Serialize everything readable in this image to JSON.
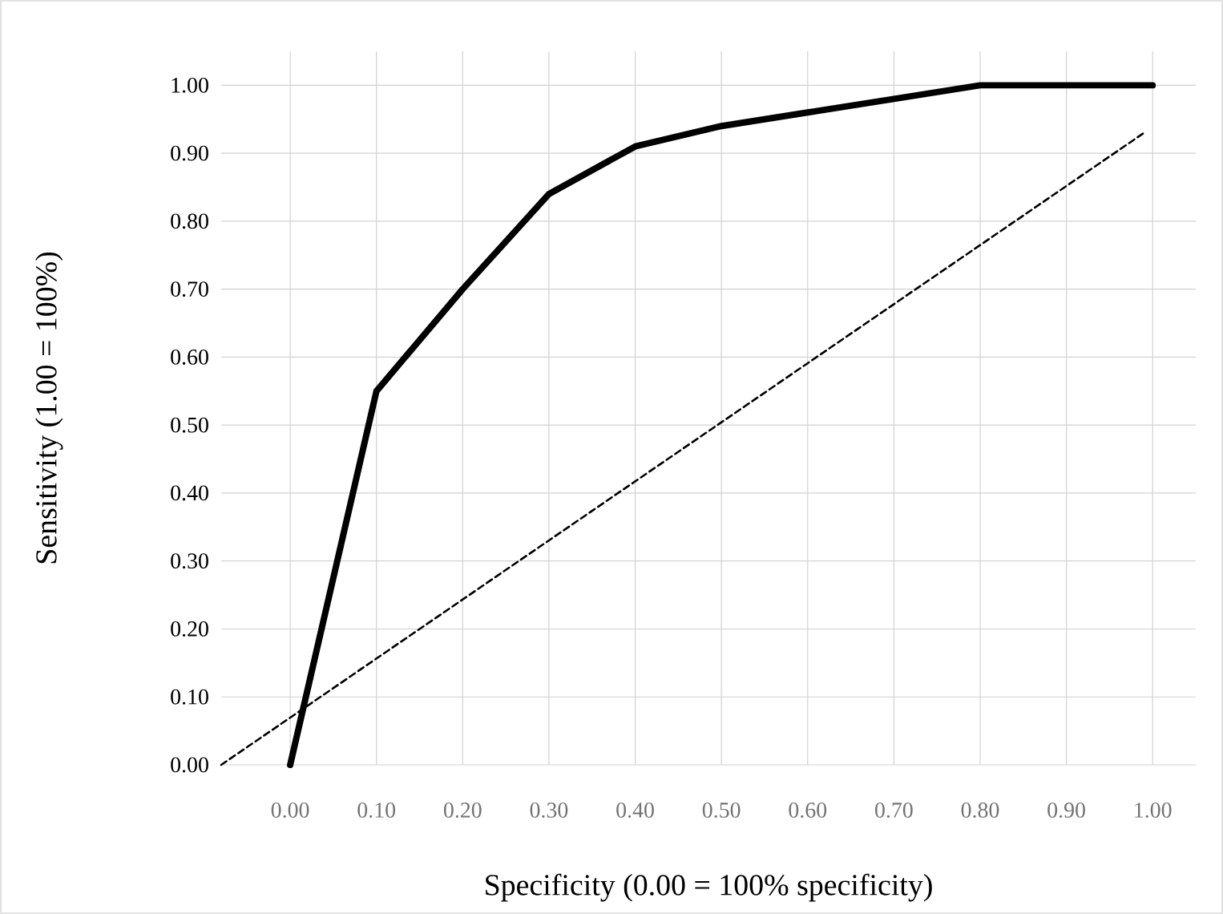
{
  "chart_data": {
    "type": "line",
    "xlabel": "Specificity (0.00 = 100% specificity)",
    "ylabel": "Sensitivity (1.00 = 100%)",
    "xlim": [
      -0.08,
      1.05
    ],
    "ylim": [
      0,
      1.05
    ],
    "xticks": [
      {
        "value": 0,
        "label": "0.00"
      },
      {
        "value": 0.1,
        "label": "0.10"
      },
      {
        "value": 0.2,
        "label": "0.20"
      },
      {
        "value": 0.3,
        "label": "0.30"
      },
      {
        "value": 0.4,
        "label": "0.40"
      },
      {
        "value": 0.5,
        "label": "0.50"
      },
      {
        "value": 0.6,
        "label": "0.60"
      },
      {
        "value": 0.7,
        "label": "0.70"
      },
      {
        "value": 0.8,
        "label": "0.80"
      },
      {
        "value": 0.9,
        "label": "0.90"
      },
      {
        "value": 1,
        "label": "1.00"
      }
    ],
    "yticks": [
      {
        "value": 0,
        "label": "0.00"
      },
      {
        "value": 0.1,
        "label": "0.10"
      },
      {
        "value": 0.2,
        "label": "0.20"
      },
      {
        "value": 0.3,
        "label": "0.30"
      },
      {
        "value": 0.4,
        "label": "0.40"
      },
      {
        "value": 0.5,
        "label": "0.50"
      },
      {
        "value": 0.6,
        "label": "0.60"
      },
      {
        "value": 0.7,
        "label": "0.70"
      },
      {
        "value": 0.8,
        "label": "0.80"
      },
      {
        "value": 0.9,
        "label": "0.90"
      },
      {
        "value": 1,
        "label": "1.00"
      }
    ],
    "grid": true,
    "series": [
      {
        "color": "#000000",
        "line_style": "solid",
        "x": [
          0,
          0.1,
          0.2,
          0.3,
          0.4,
          0.5,
          0.6,
          0.7,
          0.8,
          0.9,
          1.0
        ],
        "values": [
          0,
          0.55,
          0.7,
          0.84,
          0.91,
          0.94,
          0.96,
          0.98,
          1.0,
          1.0,
          1.0
        ]
      },
      {
        "color": "#000000",
        "line_style": "dashed",
        "x": [
          -0.08,
          0.99
        ],
        "values": [
          0.0,
          0.93
        ]
      }
    ]
  }
}
